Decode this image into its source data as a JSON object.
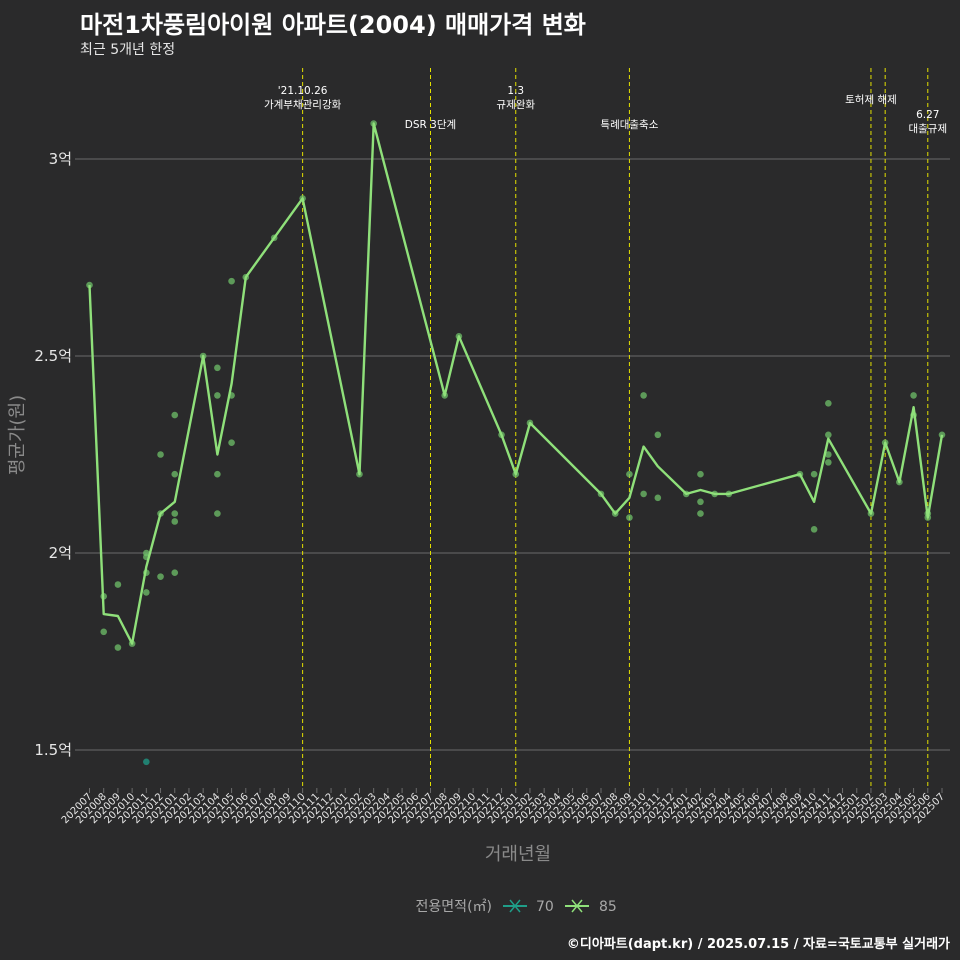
{
  "header": {
    "title": "마전1차풍림아이원 아파트(2004) 매매가격 변화",
    "subtitle": "최근 5개년 한정"
  },
  "caption": "©디아파트(dapt.kr) / 2025.07.15 / 자료=국토교통부 실거래가",
  "colors": {
    "background": "#2a2a2b",
    "grid": "#6b6b6b",
    "vline": "#e3e000",
    "series_70": "#1f9e89",
    "series_85": "#8fe07a",
    "point_85": "#6fc06a"
  },
  "chart_data": {
    "type": "line",
    "title": "마전1차풍림아이원 아파트(2004) 매매가격 변화",
    "subtitle": "최근 5개년 한정",
    "xlabel": "거래년월",
    "ylabel": "평균가(원)",
    "ylim": [
      1.4,
      3.22
    ],
    "y_unit": "억",
    "yticks": [
      {
        "value": 1.5,
        "label": "1.5억"
      },
      {
        "value": 2.0,
        "label": "2억"
      },
      {
        "value": 2.5,
        "label": "2.5억"
      },
      {
        "value": 3.0,
        "label": "3억"
      }
    ],
    "grid": true,
    "legend": {
      "position": "bottom",
      "title": "전용면적(㎡)",
      "entries": [
        "70",
        "85"
      ]
    },
    "categories": [
      "202007",
      "202008",
      "202009",
      "202010",
      "202011",
      "202012",
      "202101",
      "202102",
      "202103",
      "202104",
      "202105",
      "202106",
      "202107",
      "202108",
      "202109",
      "202110",
      "202111",
      "202112",
      "202201",
      "202202",
      "202203",
      "202204",
      "202205",
      "202206",
      "202207",
      "202208",
      "202209",
      "202210",
      "202211",
      "202212",
      "202301",
      "202302",
      "202303",
      "202304",
      "202305",
      "202306",
      "202307",
      "202308",
      "202309",
      "202310",
      "202311",
      "202312",
      "202401",
      "202402",
      "202403",
      "202404",
      "202405",
      "202406",
      "202407",
      "202408",
      "202409",
      "202410",
      "202411",
      "202412",
      "202501",
      "202502",
      "202503",
      "202504",
      "202505",
      "202506",
      "202507"
    ],
    "series": [
      {
        "name": "70",
        "line": [],
        "points": [
          [
            "202011",
            1.47
          ]
        ]
      },
      {
        "name": "85",
        "line": [
          [
            "202007",
            2.68
          ],
          [
            "202008",
            1.845
          ],
          [
            "202009",
            1.84
          ],
          [
            "202010",
            1.77
          ],
          [
            "202011",
            1.965
          ],
          [
            "202012",
            2.1
          ],
          [
            "202101",
            2.13
          ],
          [
            "202103",
            2.5
          ],
          [
            "202104",
            2.25
          ],
          [
            "202105",
            2.43
          ],
          [
            "202106",
            2.7
          ],
          [
            "202108",
            2.8
          ],
          [
            "202110",
            2.9
          ],
          [
            "202202",
            2.2
          ],
          [
            "202203",
            3.09
          ],
          [
            "202208",
            2.4
          ],
          [
            "202209",
            2.55
          ],
          [
            "202212",
            2.3
          ],
          [
            "202301",
            2.2
          ],
          [
            "202302",
            2.33
          ],
          [
            "202307",
            2.15
          ],
          [
            "202308",
            2.1
          ],
          [
            "202309",
            2.14
          ],
          [
            "202310",
            2.27
          ],
          [
            "202311",
            2.22
          ],
          [
            "202401",
            2.15
          ],
          [
            "202402",
            2.16
          ],
          [
            "202403",
            2.15
          ],
          [
            "202404",
            2.15
          ],
          [
            "202409",
            2.2
          ],
          [
            "202410",
            2.13
          ],
          [
            "202411",
            2.29
          ],
          [
            "202502",
            2.1
          ],
          [
            "202503",
            2.28
          ],
          [
            "202504",
            2.18
          ],
          [
            "202505",
            2.37
          ],
          [
            "202506",
            2.09
          ],
          [
            "202507",
            2.3
          ]
        ],
        "points": [
          [
            "202007",
            2.68
          ],
          [
            "202008",
            1.89
          ],
          [
            "202008",
            1.8
          ],
          [
            "202009",
            1.92
          ],
          [
            "202009",
            1.76
          ],
          [
            "202010",
            1.77
          ],
          [
            "202011",
            2.0
          ],
          [
            "202011",
            1.99
          ],
          [
            "202011",
            1.95
          ],
          [
            "202011",
            1.9
          ],
          [
            "202012",
            2.25
          ],
          [
            "202012",
            2.1
          ],
          [
            "202012",
            1.94
          ],
          [
            "202101",
            2.35
          ],
          [
            "202101",
            2.2
          ],
          [
            "202101",
            2.1
          ],
          [
            "202101",
            2.08
          ],
          [
            "202101",
            1.95
          ],
          [
            "202103",
            2.5
          ],
          [
            "202104",
            2.47
          ],
          [
            "202104",
            2.4
          ],
          [
            "202104",
            2.2
          ],
          [
            "202104",
            2.1
          ],
          [
            "202105",
            2.69
          ],
          [
            "202105",
            2.4
          ],
          [
            "202105",
            2.28
          ],
          [
            "202106",
            2.7
          ],
          [
            "202108",
            2.8
          ],
          [
            "202110",
            2.9
          ],
          [
            "202202",
            2.2
          ],
          [
            "202203",
            3.09
          ],
          [
            "202208",
            2.4
          ],
          [
            "202209",
            2.55
          ],
          [
            "202212",
            2.3
          ],
          [
            "202301",
            2.2
          ],
          [
            "202302",
            2.33
          ],
          [
            "202307",
            2.15
          ],
          [
            "202308",
            2.1
          ],
          [
            "202309",
            2.2
          ],
          [
            "202309",
            2.09
          ],
          [
            "202310",
            2.4
          ],
          [
            "202310",
            2.15
          ],
          [
            "202311",
            2.3
          ],
          [
            "202311",
            2.14
          ],
          [
            "202401",
            2.15
          ],
          [
            "202402",
            2.2
          ],
          [
            "202402",
            2.13
          ],
          [
            "202402",
            2.1
          ],
          [
            "202403",
            2.15
          ],
          [
            "202404",
            2.15
          ],
          [
            "202409",
            2.2
          ],
          [
            "202410",
            2.2
          ],
          [
            "202410",
            2.06
          ],
          [
            "202411",
            2.38
          ],
          [
            "202411",
            2.3
          ],
          [
            "202411",
            2.25
          ],
          [
            "202411",
            2.23
          ],
          [
            "202502",
            2.1
          ],
          [
            "202503",
            2.28
          ],
          [
            "202504",
            2.18
          ],
          [
            "202505",
            2.4
          ],
          [
            "202505",
            2.35
          ],
          [
            "202506",
            2.1
          ],
          [
            "202506",
            2.09
          ],
          [
            "202507",
            2.3
          ]
        ]
      }
    ],
    "events": [
      {
        "x": "202110",
        "lines": [
          "'21.10.26",
          "가계부채관리강화"
        ],
        "row": 1
      },
      {
        "x": "202207",
        "lines": [
          "DSR 3단계"
        ],
        "row": 3
      },
      {
        "x": "202301",
        "lines": [
          "1.3",
          "규제완화"
        ],
        "row": 1
      },
      {
        "x": "202309",
        "lines": [
          "특례대출축소"
        ],
        "row": 3
      },
      {
        "x": "202502",
        "lines": [
          "토허제 해제"
        ],
        "row": 2
      },
      {
        "x": "202503",
        "lines": [],
        "row": 2
      },
      {
        "x": "202506",
        "lines": [
          "6.27",
          "대출규제"
        ],
        "row": 4
      }
    ]
  }
}
